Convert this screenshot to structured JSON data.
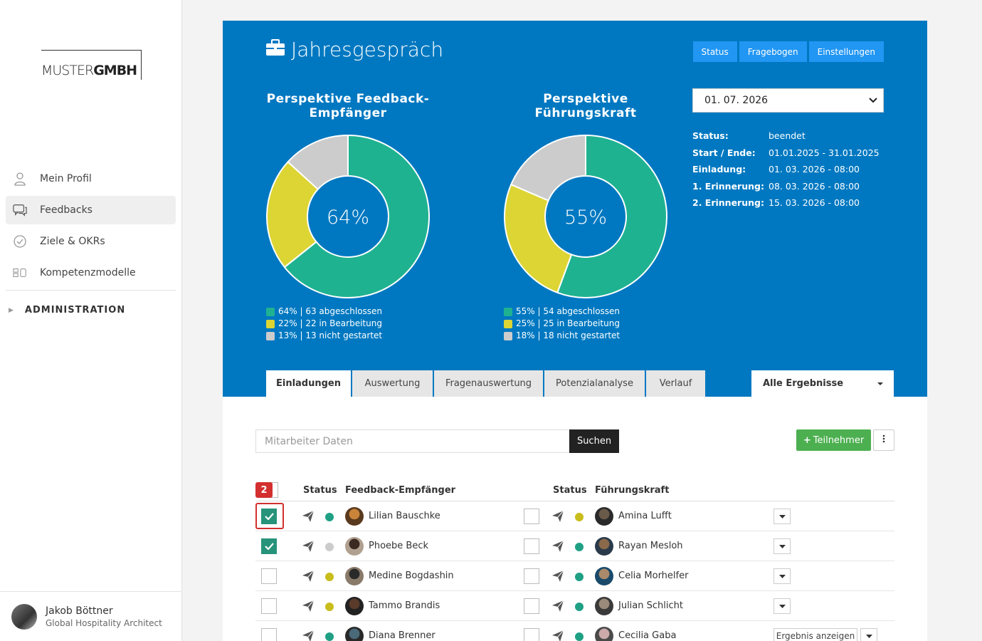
{
  "app": {
    "logo_part1": "MUSTER",
    "logo_part2": "GMBH"
  },
  "sidebar": {
    "items": [
      {
        "label": "Mein Profil",
        "icon": "user-icon"
      },
      {
        "label": "Feedbacks",
        "icon": "chat-icon",
        "active": true
      },
      {
        "label": "Ziele & OKRs",
        "icon": "check-circle-icon"
      },
      {
        "label": "Kompetenzmodelle",
        "icon": "blocks-icon"
      }
    ],
    "admin_label": "ADMINISTRATION"
  },
  "user": {
    "name": "Jakob Böttner",
    "role": "Global Hospitality Architect"
  },
  "header": {
    "title": "Jahresgespräch",
    "buttons": [
      "Status",
      "Fragebogen",
      "Einstellungen"
    ]
  },
  "charts": {
    "left": {
      "title_line1": "Perspektive Feedback-",
      "title_line2": "Empfänger",
      "center_label": "64%",
      "legend": [
        "64% | 63 abgeschlossen",
        "22% | 22 in Bearbeitung",
        "13% | 13 nicht gestartet"
      ]
    },
    "right": {
      "title_line1": "Perspektive",
      "title_line2": "Führungskraft",
      "center_label": "55%",
      "legend": [
        "55% | 54 abgeschlossen",
        "25% | 25 in Bearbeitung",
        "18% | 18 nicht gestartet"
      ]
    }
  },
  "chart_data": [
    {
      "type": "pie",
      "title": "Perspektive Feedback-Empfänger",
      "categories": [
        "abgeschlossen",
        "in Bearbeitung",
        "nicht gestartet"
      ],
      "values": [
        63,
        22,
        13
      ],
      "percent": [
        64,
        22,
        13
      ],
      "colors": [
        "#1fb291",
        "#dcd534",
        "#cccccc"
      ]
    },
    {
      "type": "pie",
      "title": "Perspektive Führungskraft",
      "categories": [
        "abgeschlossen",
        "in Bearbeitung",
        "nicht gestartet"
      ],
      "values": [
        54,
        25,
        18
      ],
      "percent": [
        55,
        25,
        18
      ],
      "colors": [
        "#1fb291",
        "#dcd534",
        "#cccccc"
      ]
    }
  ],
  "date_select": {
    "value": "01. 07. 2026"
  },
  "info": [
    {
      "k": "Status:",
      "v": "beendet"
    },
    {
      "k": "Start / Ende:",
      "v": "01.01.2025 - 31.01.2025"
    },
    {
      "k": "Einladung:",
      "v": "01. 03. 2026 - 08:00"
    },
    {
      "k": "1. Erinnerung:",
      "v": "08. 03. 2026 - 08:00"
    },
    {
      "k": "2. Erinnerung:",
      "v": "15. 03. 2026 - 08:00"
    }
  ],
  "tabs": [
    "Einladungen",
    "Auswertung",
    "Fragenauswertung",
    "Potenzialanalyse",
    "Verlauf"
  ],
  "filter": {
    "value": "Alle Ergebnisse"
  },
  "search": {
    "placeholder": "Mitarbeiter Daten",
    "button": "Suchen"
  },
  "add_button": "Teilnehmer",
  "table": {
    "headers": {
      "status1": "Status",
      "recipient": "Feedback-Empfänger",
      "status2": "Status",
      "manager": "Führungskraft"
    },
    "badge": "2",
    "rows": [
      {
        "checked": true,
        "s1": "#1fa085",
        "recipient": "Lilian Bauschke",
        "s2": "#c9bd1c",
        "manager": "Amina Lufft",
        "action": "dropdown"
      },
      {
        "checked": true,
        "s1": "#cccccc",
        "recipient": "Phoebe Beck",
        "s2": "#1fa085",
        "manager": "Rayan Mesloh",
        "action": "dropdown"
      },
      {
        "checked": false,
        "s1": "#c9bd1c",
        "recipient": "Medine Bogdashin",
        "s2": "#1fa085",
        "manager": "Celia Morhelfer",
        "action": "dropdown"
      },
      {
        "checked": false,
        "s1": "#c9bd1c",
        "recipient": "Tammo Brandis",
        "s2": "#1fa085",
        "manager": "Julian Schlicht",
        "action": "dropdown"
      },
      {
        "checked": false,
        "s1": "#1fa085",
        "recipient": "Diana Brenner",
        "s2": "#1fa085",
        "manager": "Cecilia Gaba",
        "action": "Ergebnis anzeigen"
      }
    ]
  }
}
